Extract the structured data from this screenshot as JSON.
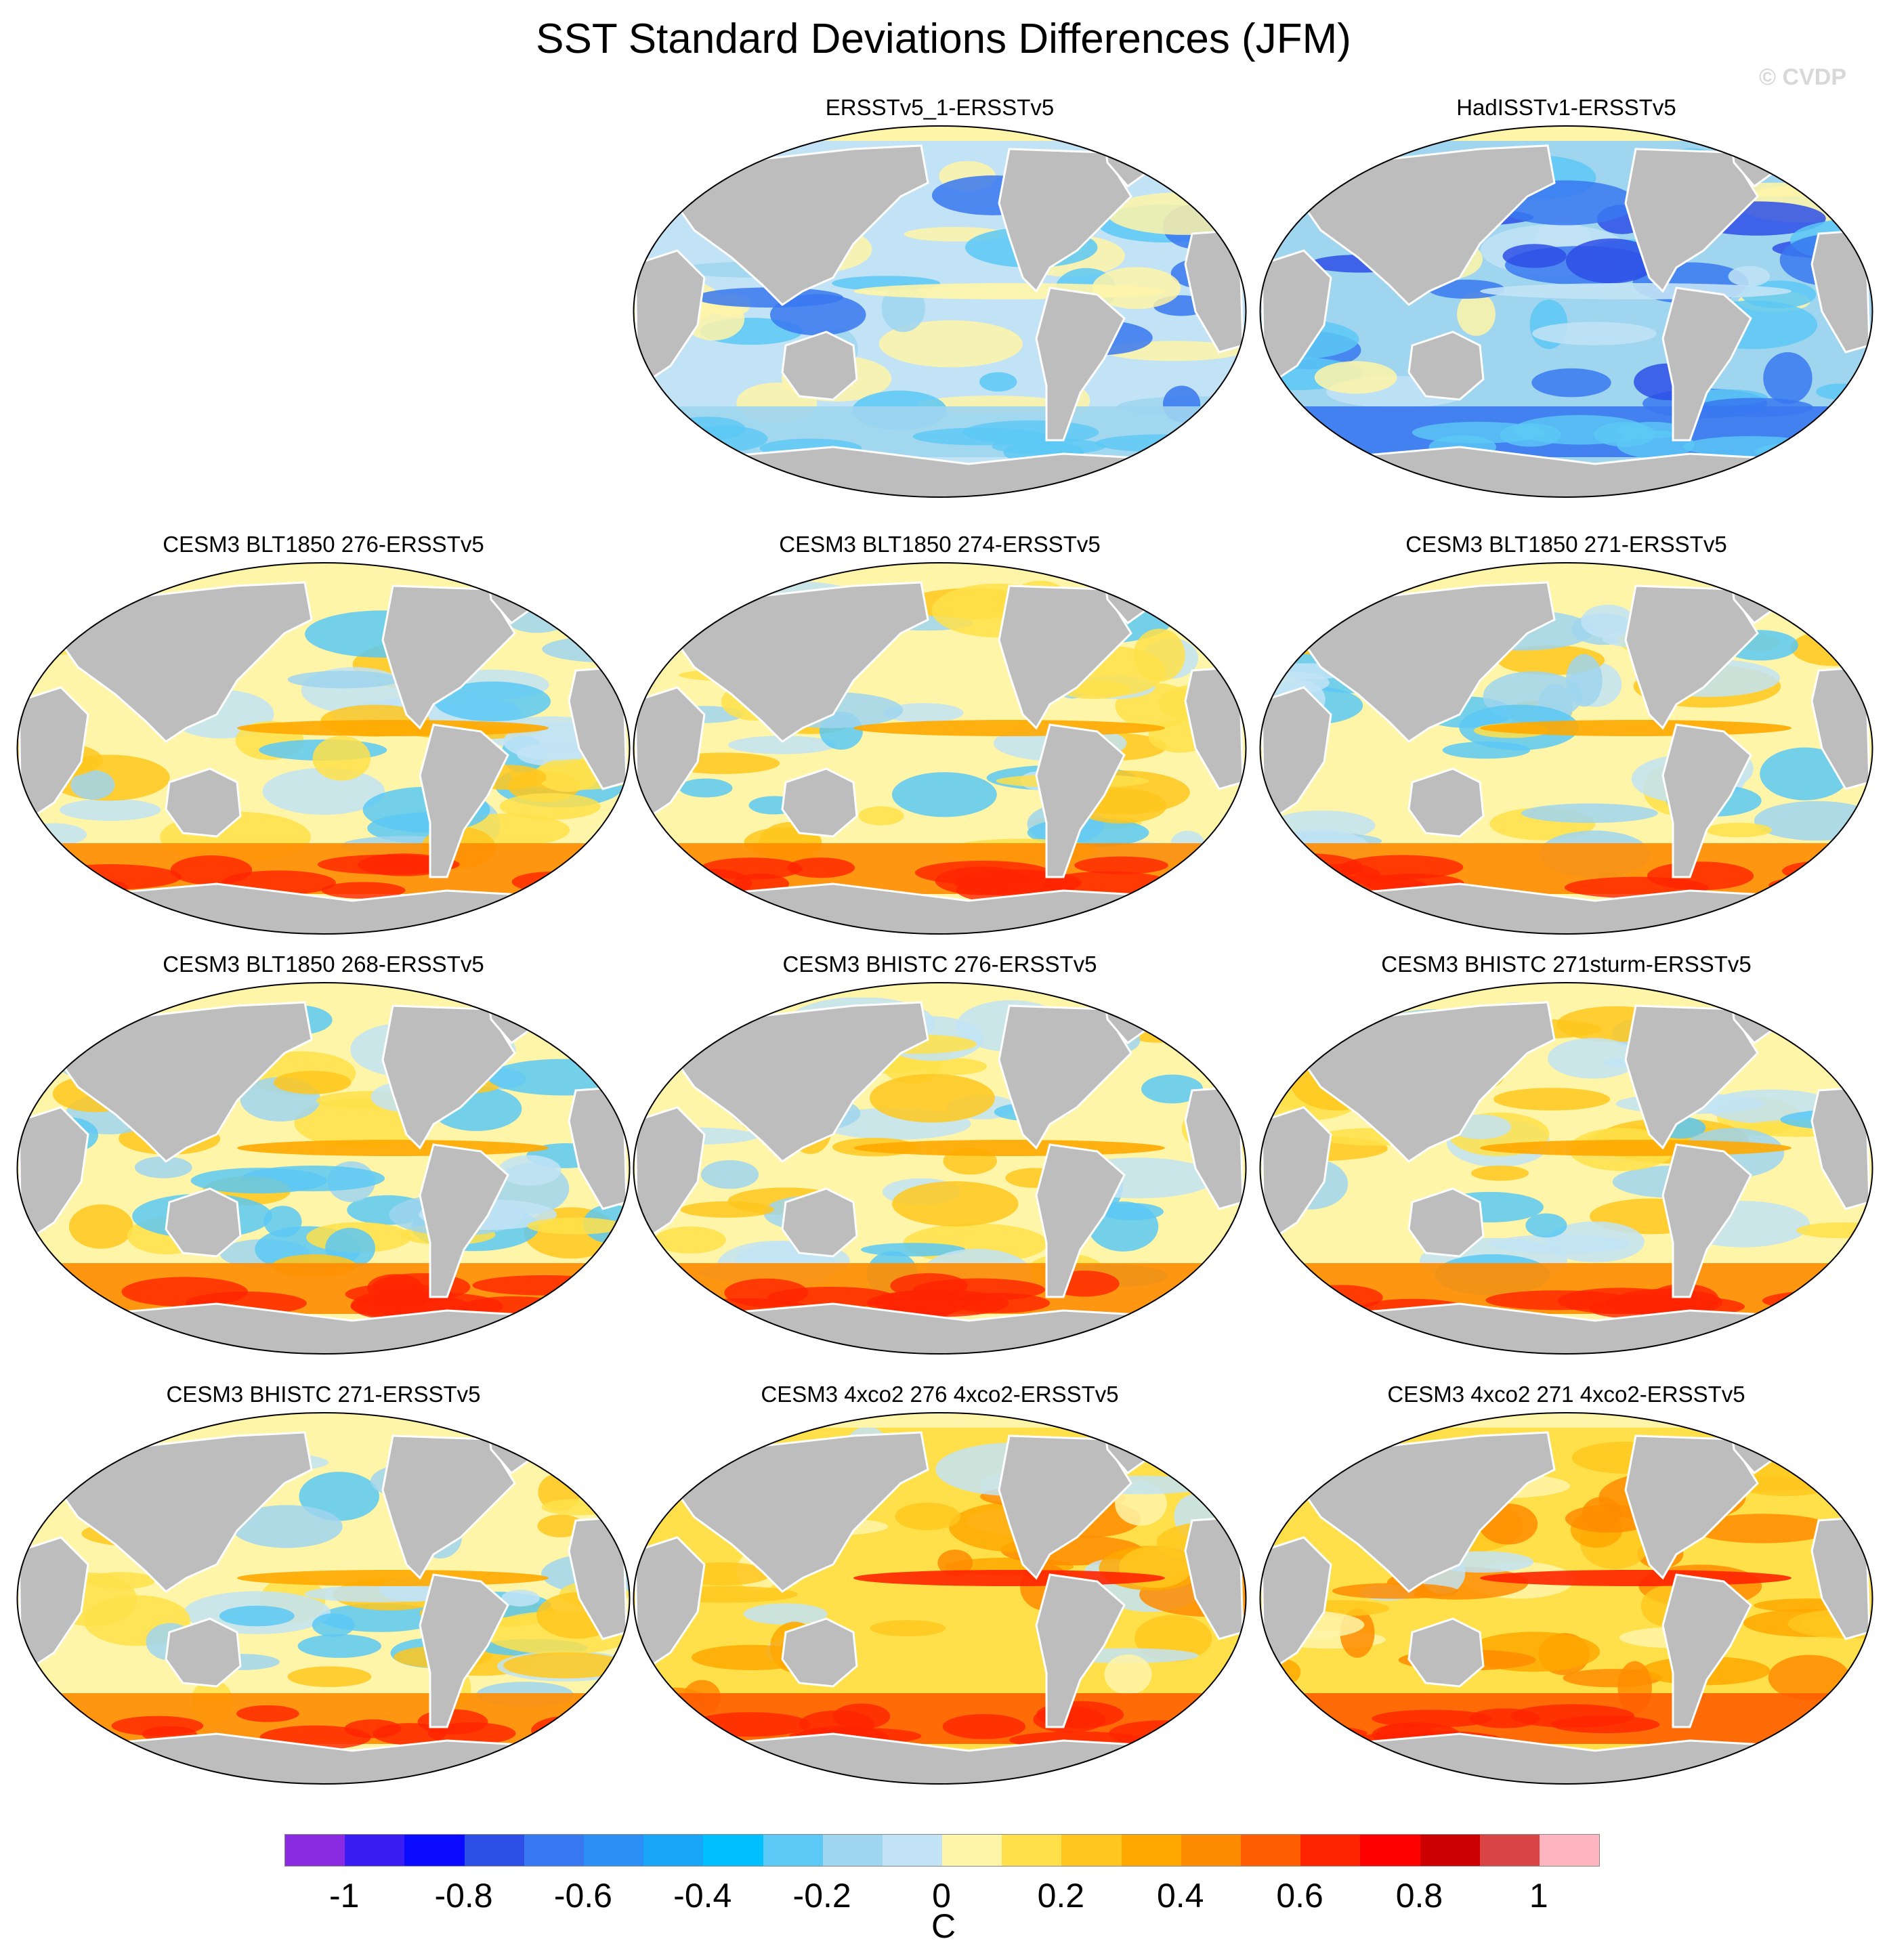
{
  "figure": {
    "title": "SST Standard Deviations Differences (JFM)",
    "watermark": "© CVDP"
  },
  "panels": [
    {
      "title": "ERSSTv5_1-ERSSTv5",
      "scheme": "cool"
    },
    {
      "title": "HadISSTv1-ERSSTv5",
      "scheme": "coolstrong"
    },
    {
      "title": "CESM3 BLT1850 276-ERSSTv5",
      "scheme": "warm"
    },
    {
      "title": "CESM3 BLT1850 274-ERSSTv5",
      "scheme": "warm"
    },
    {
      "title": "CESM3 BLT1850 271-ERSSTv5",
      "scheme": "warm"
    },
    {
      "title": "CESM3 BLT1850 268-ERSSTv5",
      "scheme": "warm"
    },
    {
      "title": "CESM3 BHISTC 276-ERSSTv5",
      "scheme": "warm"
    },
    {
      "title": "CESM3 BHISTC 271sturm-ERSSTv5",
      "scheme": "warm"
    },
    {
      "title": "CESM3 BHISTC 271-ERSSTv5",
      "scheme": "warm"
    },
    {
      "title": "CESM3 4xco2 276 4xco2-ERSSTv5",
      "scheme": "hot"
    },
    {
      "title": "CESM3 4xco2 271 4xco2-ERSSTv5",
      "scheme": "hot"
    }
  ],
  "colorbar": {
    "units": "C",
    "colors": [
      "#8a2be2",
      "#3a1df2",
      "#0a0aff",
      "#2e4fe6",
      "#3878f0",
      "#2b8ff5",
      "#1aa6f7",
      "#00bfff",
      "#5cc8f5",
      "#9fd5ef",
      "#c2e3f5",
      "#fff5a8",
      "#ffe04a",
      "#ffc71f",
      "#ffa800",
      "#ff8c00",
      "#ff5e00",
      "#ff2400",
      "#ff0000",
      "#cc0000",
      "#d94545",
      "#ffb6c1"
    ],
    "tick_labels": [
      "-1",
      "-0.8",
      "-0.6",
      "-0.4",
      "-0.2",
      "0",
      "0.2",
      "0.4",
      "0.6",
      "0.8",
      "1"
    ]
  }
}
